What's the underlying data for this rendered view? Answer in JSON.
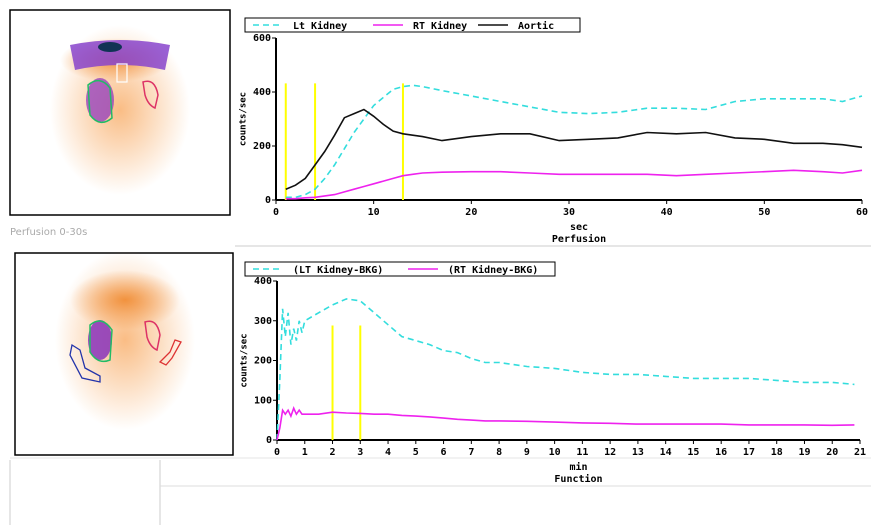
{
  "image_caption": "Perfusion 0-30s",
  "chart_data": [
    {
      "type": "line",
      "xlabel": "sec",
      "title": "Perfusion",
      "ylabel": "counts/sec",
      "xlim": [
        0,
        60
      ],
      "xticks": [
        0,
        10,
        20,
        30,
        40,
        50,
        60
      ],
      "ylim": [
        0,
        600
      ],
      "yticks": [
        0,
        200,
        400,
        600
      ],
      "markers": [
        1,
        4,
        13
      ],
      "marker_color": "#ffff00",
      "x": [
        1,
        2,
        3,
        4,
        5,
        6,
        7,
        8,
        9,
        10,
        11,
        12,
        13,
        14,
        15,
        17,
        20,
        23,
        26,
        29,
        32,
        35,
        38,
        41,
        44,
        47,
        50,
        53,
        56,
        58,
        60
      ],
      "series": [
        {
          "name": "Lt Kidney",
          "color": "#33dddd",
          "dashed": true,
          "values": [
            10,
            10,
            20,
            40,
            80,
            130,
            190,
            250,
            300,
            350,
            380,
            410,
            420,
            425,
            420,
            405,
            385,
            365,
            345,
            325,
            320,
            325,
            340,
            340,
            335,
            365,
            375,
            375,
            375,
            365,
            385
          ]
        },
        {
          "name": "RT Kidney",
          "color": "#ee22ee",
          "dashed": false,
          "values": [
            5,
            5,
            8,
            10,
            15,
            20,
            30,
            40,
            50,
            60,
            70,
            80,
            90,
            95,
            100,
            103,
            105,
            105,
            100,
            95,
            95,
            95,
            95,
            90,
            95,
            100,
            105,
            110,
            105,
            100,
            110
          ]
        },
        {
          "name": "Aortic",
          "color": "#111111",
          "dashed": false,
          "values": [
            40,
            55,
            80,
            130,
            180,
            240,
            305,
            320,
            335,
            310,
            280,
            255,
            245,
            240,
            235,
            220,
            235,
            245,
            245,
            220,
            225,
            230,
            250,
            245,
            250,
            230,
            225,
            210,
            210,
            205,
            195
          ]
        }
      ]
    },
    {
      "type": "line",
      "xlabel": "min",
      "title": "Function",
      "ylabel": "counts/sec",
      "xlim": [
        0,
        21
      ],
      "xticks": [
        0,
        1,
        2,
        3,
        4,
        5,
        6,
        7,
        8,
        9,
        10,
        11,
        12,
        13,
        14,
        15,
        16,
        17,
        18,
        19,
        20,
        21
      ],
      "ylim": [
        0,
        400
      ],
      "yticks": [
        0,
        100,
        200,
        300,
        400
      ],
      "markers": [
        2,
        3
      ],
      "marker_color": "#ffff00",
      "x": [
        0,
        0.1,
        0.2,
        0.3,
        0.4,
        0.5,
        0.6,
        0.7,
        0.8,
        0.9,
        1,
        1.5,
        2,
        2.5,
        3,
        3.5,
        4,
        4.5,
        5,
        5.5,
        6,
        6.5,
        7,
        7.5,
        8,
        9,
        10,
        11,
        12,
        13,
        14,
        15,
        16,
        17,
        18,
        19,
        20,
        20.8
      ],
      "series": [
        {
          "name": "(LT Kidney-BKG)",
          "color": "#33dddd",
          "dashed": true,
          "values": [
            0,
            150,
            330,
            260,
            320,
            240,
            280,
            250,
            300,
            270,
            300,
            320,
            340,
            355,
            350,
            320,
            290,
            260,
            250,
            240,
            225,
            220,
            205,
            195,
            195,
            185,
            180,
            170,
            165,
            165,
            160,
            155,
            155,
            155,
            150,
            145,
            145,
            140
          ]
        },
        {
          "name": "(RT Kidney-BKG)",
          "color": "#ee22ee",
          "dashed": false,
          "values": [
            0,
            30,
            75,
            65,
            75,
            60,
            80,
            65,
            75,
            65,
            65,
            65,
            70,
            68,
            67,
            65,
            65,
            62,
            60,
            58,
            55,
            52,
            50,
            48,
            48,
            47,
            45,
            43,
            42,
            40,
            40,
            40,
            40,
            38,
            38,
            38,
            37,
            38
          ]
        }
      ]
    }
  ]
}
